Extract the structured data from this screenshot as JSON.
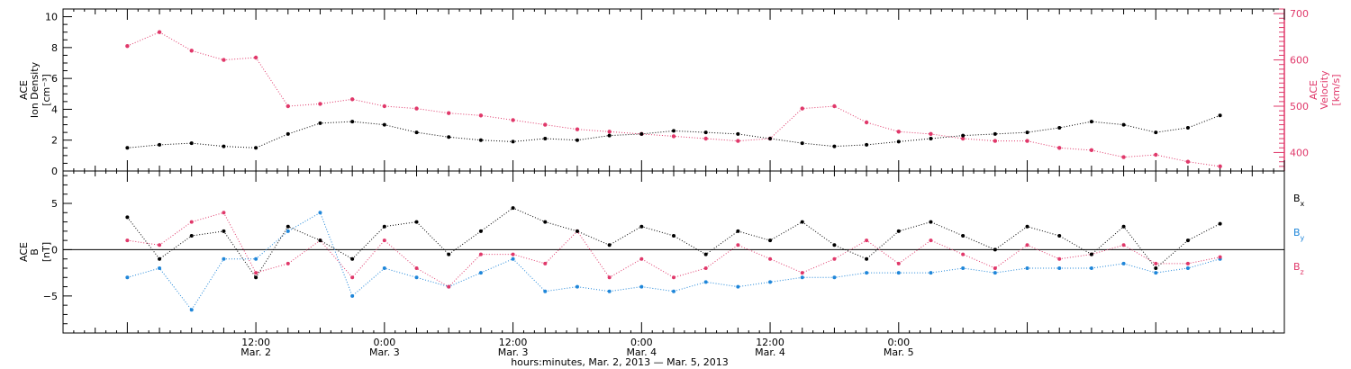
{
  "chart_data": [
    {
      "type": "scatter",
      "panel": "plasma",
      "ylabel_left": [
        "ACE",
        "Ion Density",
        "[cm⁻³]"
      ],
      "ylabel_right": [
        "ACE",
        "Velocity",
        "[km/s]"
      ],
      "left_ylim": [
        0,
        10.5
      ],
      "left_yticks": [
        0,
        2,
        4,
        6,
        8,
        10
      ],
      "right_ylim": [
        360,
        710
      ],
      "right_yticks": [
        400,
        500,
        600,
        700
      ],
      "series": [
        {
          "name": "Ion Density",
          "axis": "left",
          "color": "#000000",
          "x_hours": [
            0,
            3,
            6,
            9,
            12,
            15,
            18,
            21,
            24,
            27,
            30,
            33,
            36,
            39,
            42,
            45,
            48,
            51,
            54,
            57,
            60,
            63,
            66,
            69,
            72,
            75,
            78,
            81,
            84,
            87,
            90,
            93,
            96,
            99,
            102
          ],
          "values": [
            1.5,
            1.7,
            1.8,
            1.6,
            1.5,
            2.4,
            3.1,
            3.2,
            3.0,
            2.5,
            2.2,
            2.0,
            1.9,
            2.1,
            2.0,
            2.3,
            2.4,
            2.6,
            2.5,
            2.4,
            2.1,
            1.8,
            1.6,
            1.7,
            1.9,
            2.1,
            2.3,
            2.4,
            2.5,
            2.8,
            3.2,
            3.0,
            2.5,
            2.8,
            3.6
          ]
        },
        {
          "name": "Velocity",
          "axis": "right",
          "color": "#e0386a",
          "x_hours": [
            0,
            3,
            6,
            9,
            12,
            15,
            18,
            21,
            24,
            27,
            30,
            33,
            36,
            39,
            42,
            45,
            48,
            51,
            54,
            57,
            60,
            63,
            66,
            69,
            72,
            75,
            78,
            81,
            84,
            87,
            90,
            93,
            96,
            99,
            102
          ],
          "values": [
            630,
            660,
            620,
            600,
            605,
            500,
            505,
            515,
            500,
            495,
            485,
            480,
            470,
            460,
            450,
            445,
            440,
            435,
            430,
            425,
            430,
            495,
            500,
            465,
            445,
            440,
            430,
            425,
            425,
            410,
            405,
            390,
            395,
            380,
            370
          ]
        }
      ]
    },
    {
      "type": "scatter",
      "panel": "magnetic",
      "ylabel_left": [
        "ACE",
        "B",
        "[nT]"
      ],
      "ylim": [
        -9,
        8.5
      ],
      "yticks": [
        -5,
        0,
        5
      ],
      "zero_line": true,
      "legend": [
        "Bx",
        "By",
        "Bz"
      ],
      "legend_position": "right",
      "series": [
        {
          "name": "Bx",
          "color": "#000000",
          "x_hours": [
            0,
            3,
            6,
            9,
            12,
            15,
            18,
            21,
            24,
            27,
            30,
            33,
            36,
            39,
            42,
            45,
            48,
            51,
            54,
            57,
            60,
            63,
            66,
            69,
            72,
            75,
            78,
            81,
            84,
            87,
            90,
            93,
            96,
            99,
            102
          ],
          "values": [
            3.5,
            -1.0,
            1.5,
            2.0,
            -3.0,
            2.5,
            1.0,
            -1.0,
            2.5,
            3.0,
            -0.5,
            2.0,
            4.5,
            3.0,
            2.0,
            0.5,
            2.5,
            1.5,
            -0.5,
            2.0,
            1.0,
            3.0,
            0.5,
            -1.0,
            2.0,
            3.0,
            1.5,
            0.0,
            2.5,
            1.5,
            -0.5,
            2.5,
            -2.0,
            1.0,
            2.8
          ]
        },
        {
          "name": "By",
          "color": "#1f86d9",
          "x_hours": [
            0,
            3,
            6,
            9,
            12,
            15,
            18,
            21,
            24,
            27,
            30,
            33,
            36,
            39,
            42,
            45,
            48,
            51,
            54,
            57,
            60,
            63,
            66,
            69,
            72,
            75,
            78,
            81,
            84,
            87,
            90,
            93,
            96,
            99,
            102
          ],
          "values": [
            -3.0,
            -2.0,
            -6.5,
            -1.0,
            -1.0,
            2.0,
            4.0,
            -5.0,
            -2.0,
            -3.0,
            -4.0,
            -2.5,
            -1.0,
            -4.5,
            -4.0,
            -4.5,
            -4.0,
            -4.5,
            -3.5,
            -4.0,
            -3.5,
            -3.0,
            -3.0,
            -2.5,
            -2.5,
            -2.5,
            -2.0,
            -2.5,
            -2.0,
            -2.0,
            -2.0,
            -1.5,
            -2.5,
            -2.0,
            -1.0
          ]
        },
        {
          "name": "Bz",
          "color": "#e0386a",
          "x_hours": [
            0,
            3,
            6,
            9,
            12,
            15,
            18,
            21,
            24,
            27,
            30,
            33,
            36,
            39,
            42,
            45,
            48,
            51,
            54,
            57,
            60,
            63,
            66,
            69,
            72,
            75,
            78,
            81,
            84,
            87,
            90,
            93,
            96,
            99,
            102
          ],
          "values": [
            1.0,
            0.5,
            3.0,
            4.0,
            -2.5,
            -1.5,
            1.0,
            -3.0,
            1.0,
            -2.0,
            -4.0,
            -0.5,
            -0.5,
            -1.5,
            2.0,
            -3.0,
            -1.0,
            -3.0,
            -2.0,
            0.5,
            -1.0,
            -2.5,
            -1.0,
            1.0,
            -1.5,
            1.0,
            -0.5,
            -2.0,
            0.5,
            -1.0,
            -0.5,
            0.5,
            -1.5,
            -1.5,
            -0.8
          ]
        }
      ]
    }
  ],
  "x_axis": {
    "range_hours": [
      -6,
      108
    ],
    "ticks": [
      {
        "hour": 12,
        "time": "12:00",
        "date": "Mar. 2"
      },
      {
        "hour": 24,
        "time": "0:00",
        "date": "Mar. 3"
      },
      {
        "hour": 36,
        "time": "12:00",
        "date": "Mar. 3"
      },
      {
        "hour": 48,
        "time": "0:00",
        "date": "Mar. 4"
      },
      {
        "hour": 60,
        "time": "12:00",
        "date": "Mar. 4"
      },
      {
        "hour": 72,
        "time": "0:00",
        "date": "Mar. 5"
      }
    ],
    "minor_every_hours": 1,
    "medium_every_hours": 3,
    "label": "hours:minutes, Mar.  2, 2013 — Mar.  5, 2013"
  },
  "legend_labels": {
    "bx": "B",
    "bx_sub": "x",
    "by": "B",
    "by_sub": "y",
    "bz": "B",
    "bz_sub": "z"
  },
  "colors": {
    "density": "#000000",
    "velocity": "#e0386a",
    "bx": "#000000",
    "by": "#1f86d9",
    "bz": "#e0386a"
  }
}
